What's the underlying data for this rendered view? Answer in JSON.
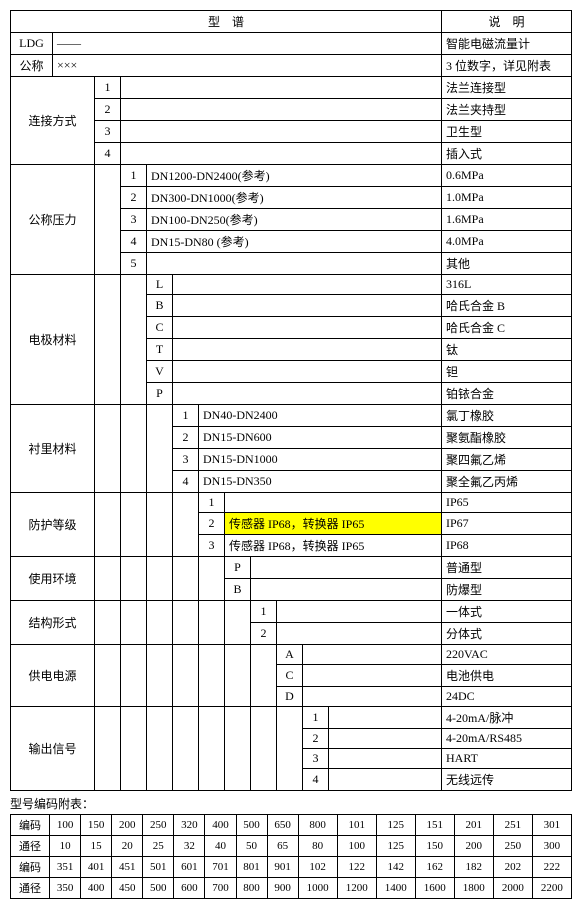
{
  "header": {
    "spec": "型　谱",
    "desc": "说　明"
  },
  "rows": {
    "ldg": {
      "code": "LDG",
      "dash": "——",
      "desc": "智能电磁流量计"
    },
    "nominal": {
      "label": "公称",
      "value": "×××",
      "desc": "3 位数字，详见附表"
    },
    "connection": {
      "label": "连接方式",
      "items": [
        {
          "code": "1",
          "desc": "法兰连接型"
        },
        {
          "code": "2",
          "desc": "法兰夹持型"
        },
        {
          "code": "3",
          "desc": "卫生型"
        },
        {
          "code": "4",
          "desc": "插入式"
        }
      ]
    },
    "pressure": {
      "label": "公称压力",
      "items": [
        {
          "code": "1",
          "val": "DN1200-DN2400(参考)",
          "desc": "0.6MPa"
        },
        {
          "code": "2",
          "val": "DN300-DN1000(参考)",
          "desc": "1.0MPa"
        },
        {
          "code": "3",
          "val": "DN100-DN250(参考)",
          "desc": "1.6MPa"
        },
        {
          "code": "4",
          "val": "DN15-DN80 (参考)",
          "desc": "4.0MPa"
        },
        {
          "code": "5",
          "val": "",
          "desc": "其他"
        }
      ]
    },
    "electrode": {
      "label": "电极材料",
      "items": [
        {
          "code": "L",
          "desc": "316L"
        },
        {
          "code": "B",
          "desc": "哈氏合金 B"
        },
        {
          "code": "C",
          "desc": "哈氏合金 C"
        },
        {
          "code": "T",
          "desc": "钛"
        },
        {
          "code": "V",
          "desc": "钽"
        },
        {
          "code": "P",
          "desc": "铂铱合金"
        }
      ]
    },
    "lining": {
      "label": "衬里材料",
      "items": [
        {
          "code": "1",
          "val": "DN40-DN2400",
          "desc": "氯丁橡胶"
        },
        {
          "code": "2",
          "val": "DN15-DN600",
          "desc": "聚氨酯橡胶"
        },
        {
          "code": "3",
          "val": "DN15-DN1000",
          "desc": "聚四氟乙烯"
        },
        {
          "code": "4",
          "val": "DN15-DN350",
          "desc": "聚全氟乙丙烯"
        }
      ]
    },
    "protection": {
      "label": "防护等级",
      "items": [
        {
          "code": "1",
          "val": "",
          "desc": "IP65"
        },
        {
          "code": "2",
          "val": "传感器 IP68，转换器 IP65",
          "desc": "IP67",
          "highlight": true
        },
        {
          "code": "3",
          "val": "传感器 IP68，转换器 IP65",
          "desc": "IP68"
        }
      ]
    },
    "environment": {
      "label": "使用环境",
      "items": [
        {
          "code": "P",
          "desc": "普通型"
        },
        {
          "code": "B",
          "desc": "防爆型"
        }
      ]
    },
    "structure": {
      "label": "结构形式",
      "items": [
        {
          "code": "1",
          "desc": "一体式"
        },
        {
          "code": "2",
          "desc": "分体式"
        }
      ]
    },
    "power": {
      "label": "供电电源",
      "items": [
        {
          "code": "A",
          "desc": "220VAC"
        },
        {
          "code": "C",
          "desc": "电池供电"
        },
        {
          "code": "D",
          "desc": "24DC"
        }
      ]
    },
    "output": {
      "label": "输出信号",
      "items": [
        {
          "code": "1",
          "desc": "4-20mA/脉冲"
        },
        {
          "code": "2",
          "desc": "4-20mA/RS485"
        },
        {
          "code": "3",
          "desc": "HART"
        },
        {
          "code": "4",
          "desc": "无线远传"
        }
      ]
    }
  },
  "appendix": {
    "label": "型号编码附表：",
    "headers": {
      "code": "编码",
      "diameter": "通径"
    },
    "row1code": [
      "100",
      "150",
      "200",
      "250",
      "320",
      "400",
      "500",
      "650",
      "800",
      "101",
      "125",
      "151",
      "201",
      "251",
      "301"
    ],
    "row1dia": [
      "10",
      "15",
      "20",
      "25",
      "32",
      "40",
      "50",
      "65",
      "80",
      "100",
      "125",
      "150",
      "200",
      "250",
      "300"
    ],
    "row2code": [
      "351",
      "401",
      "451",
      "501",
      "601",
      "701",
      "801",
      "901",
      "102",
      "122",
      "142",
      "162",
      "182",
      "202",
      "222"
    ],
    "row2dia": [
      "350",
      "400",
      "450",
      "500",
      "600",
      "700",
      "800",
      "900",
      "1000",
      "1200",
      "1400",
      "1600",
      "1800",
      "2000",
      "2200"
    ]
  }
}
